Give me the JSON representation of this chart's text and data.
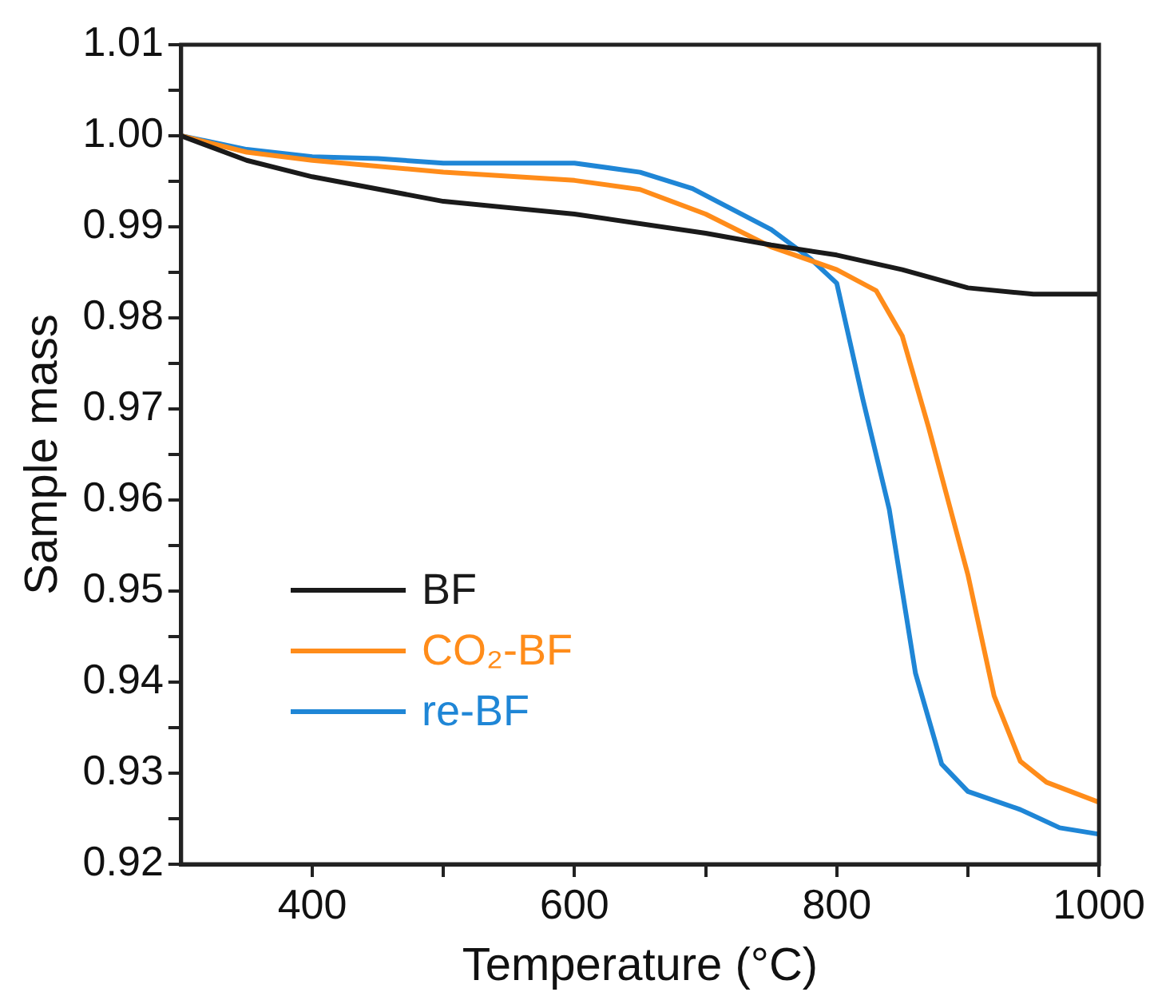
{
  "chart_data": {
    "type": "line",
    "xlabel": "Temperature (°C)",
    "ylabel": "Sample mass",
    "xlim": [
      300,
      1000
    ],
    "ylim": [
      0.92,
      1.01
    ],
    "xticks": [
      400,
      {
        "value": 500,
        "label": null
      },
      600,
      {
        "value": 700,
        "label": null
      },
      800,
      {
        "value": 900,
        "label": null
      },
      1000
    ],
    "yticks": [
      {
        "value": 0.92,
        "label": "0.92"
      },
      {
        "value": 0.925,
        "label": null
      },
      {
        "value": 0.93,
        "label": "0.93"
      },
      {
        "value": 0.935,
        "label": null
      },
      {
        "value": 0.94,
        "label": "0.94"
      },
      {
        "value": 0.945,
        "label": null
      },
      {
        "value": 0.95,
        "label": "0.95"
      },
      {
        "value": 0.955,
        "label": null
      },
      {
        "value": 0.96,
        "label": "0.96"
      },
      {
        "value": 0.965,
        "label": null
      },
      {
        "value": 0.97,
        "label": "0.97"
      },
      {
        "value": 0.975,
        "label": null
      },
      {
        "value": 0.98,
        "label": "0.98"
      },
      {
        "value": 0.985,
        "label": null
      },
      {
        "value": 0.99,
        "label": "0.99"
      },
      {
        "value": 0.995,
        "label": null
      },
      {
        "value": 1.0,
        "label": "1.00"
      },
      {
        "value": 1.005,
        "label": null
      },
      {
        "value": 1.01,
        "label": "1.01"
      }
    ],
    "grid": false,
    "legend": "left",
    "marker": "none",
    "line_style": "solid",
    "series": [
      {
        "name": "BF",
        "color": "#1a1a1a",
        "x": [
          300,
          350,
          400,
          500,
          600,
          700,
          750,
          800,
          850,
          900,
          950,
          1000
        ],
        "values": [
          1.0,
          0.9973,
          0.9955,
          0.9928,
          0.9914,
          0.9893,
          0.988,
          0.9869,
          0.9853,
          0.9833,
          0.9826,
          0.9826
        ]
      },
      {
        "name": "CO₂-BF",
        "color": "#ff8c1a",
        "x": [
          300,
          350,
          400,
          500,
          600,
          650,
          700,
          750,
          800,
          830,
          850,
          870,
          900,
          920,
          940,
          960,
          1000
        ],
        "values": [
          1.0,
          0.9982,
          0.9973,
          0.996,
          0.9951,
          0.9941,
          0.9914,
          0.9878,
          0.9853,
          0.983,
          0.978,
          0.968,
          0.9518,
          0.9385,
          0.9313,
          0.929,
          0.9268
        ]
      },
      {
        "name": "re-BF",
        "color": "#1f86d6",
        "x": [
          300,
          350,
          400,
          450,
          500,
          550,
          600,
          650,
          690,
          750,
          780,
          800,
          820,
          840,
          860,
          880,
          900,
          940,
          970,
          1000
        ],
        "values": [
          1.0,
          0.9985,
          0.9977,
          0.9975,
          0.997,
          0.997,
          0.997,
          0.996,
          0.9942,
          0.9897,
          0.9865,
          0.9838,
          0.971,
          0.959,
          0.941,
          0.931,
          0.928,
          0.926,
          0.924,
          0.9233
        ]
      }
    ]
  }
}
